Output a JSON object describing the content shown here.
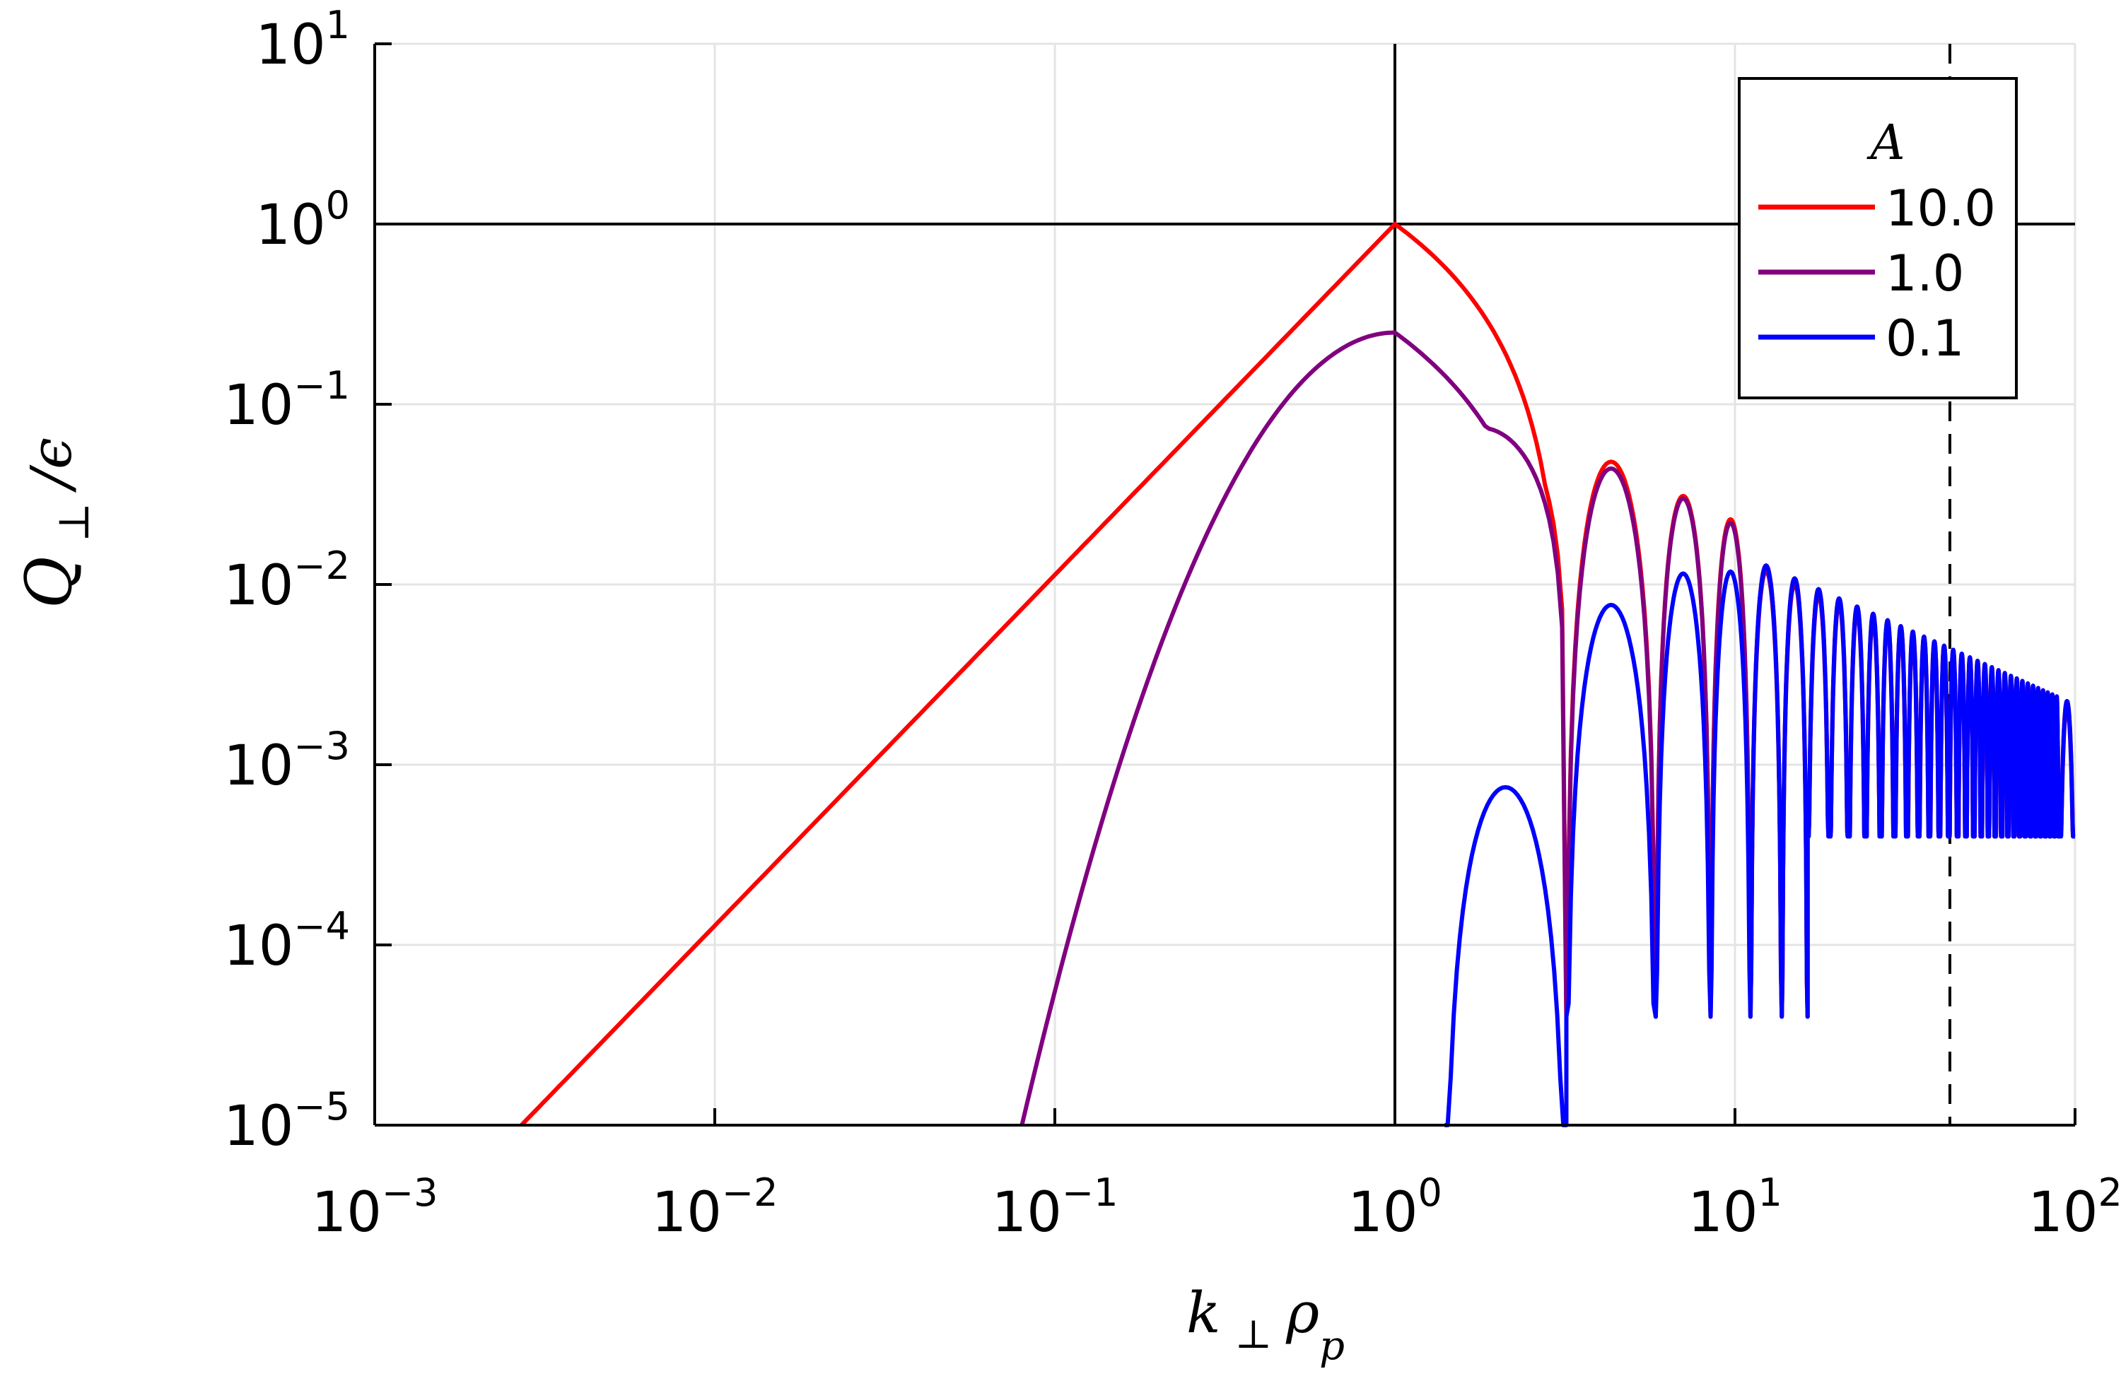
{
  "chart_data": {
    "type": "line",
    "xscale": "log",
    "yscale": "log",
    "xlim": [
      0.001,
      100
    ],
    "ylim": [
      1e-05,
      10
    ],
    "grid": true,
    "xticks": [
      {
        "value": 0.001,
        "base": "10",
        "exp": "−3"
      },
      {
        "value": 0.01,
        "base": "10",
        "exp": "−2"
      },
      {
        "value": 0.1,
        "base": "10",
        "exp": "−1"
      },
      {
        "value": 1,
        "base": "10",
        "exp": "0"
      },
      {
        "value": 10,
        "base": "10",
        "exp": "1"
      },
      {
        "value": 100,
        "base": "10",
        "exp": "2"
      }
    ],
    "yticks": [
      {
        "value": 1e-05,
        "base": "10",
        "exp": "−5"
      },
      {
        "value": 0.0001,
        "base": "10",
        "exp": "−4"
      },
      {
        "value": 0.001,
        "base": "10",
        "exp": "−3"
      },
      {
        "value": 0.01,
        "base": "10",
        "exp": "−2"
      },
      {
        "value": 0.1,
        "base": "10",
        "exp": "−1"
      },
      {
        "value": 1,
        "base": "10",
        "exp": "0"
      },
      {
        "value": 10,
        "base": "10",
        "exp": "1"
      }
    ],
    "xlabel": {
      "base": "k",
      "sub1": "⊥",
      "mid": "ρ",
      "sub2": "p"
    },
    "ylabel": {
      "base": "Q",
      "sub": "⊥",
      "tail": "/ϵ"
    },
    "legend": {
      "title": "A",
      "position": "top-right",
      "entries": [
        {
          "label": "10.0",
          "color": "#ff0000"
        },
        {
          "label": "1.0",
          "color": "#800080"
        },
        {
          "label": "0.1",
          "color": "#0000ff"
        }
      ]
    },
    "reference_lines": [
      {
        "orientation": "vertical",
        "x": 1,
        "style": "solid",
        "color": "#000000"
      },
      {
        "orientation": "horizontal",
        "y": 1,
        "style": "solid",
        "color": "#000000"
      },
      {
        "orientation": "vertical",
        "x": 42.85,
        "style": "dashed",
        "color": "#000000"
      }
    ],
    "series": [
      {
        "name": "10.0",
        "color": "#ff0000",
        "model": {
          "amplitude": 1.0,
          "k_low": 0.0027,
          "n_low": 1.0,
          "bumps": [
            0.093,
            0.048,
            0.031,
            0.023
          ],
          "tail_ref": 0.0045,
          "tail_exp": -0.85
        }
      },
      {
        "name": "1.0",
        "color": "#800080",
        "model": {
          "amplitude": 0.25,
          "k_low": 0.08,
          "n_low": 0.5,
          "bumps": [
            0.074,
            0.044,
            0.03,
            0.022
          ],
          "tail_ref": 0.0042,
          "tail_exp": -0.85
        }
      },
      {
        "name": "0.1",
        "color": "#0000ff",
        "model": {
          "amplitude": 0.0,
          "k_low": 1.4,
          "n_low": 0.5,
          "bumps": [
            0.00075,
            0.0077,
            0.0115,
            0.0118
          ],
          "tail_ref": 0.0045,
          "tail_exp": -0.85
        }
      }
    ]
  }
}
